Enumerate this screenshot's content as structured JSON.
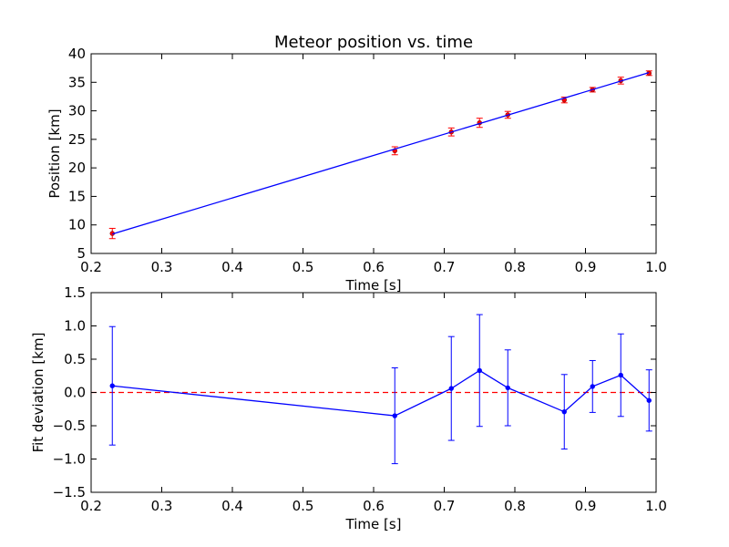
{
  "chart_data": [
    {
      "type": "scatter",
      "title": "Meteor position vs. time",
      "xlabel": "Time [s]",
      "ylabel": "Position [km]",
      "xlim": [
        0.2,
        1.0
      ],
      "ylim": [
        5,
        40
      ],
      "xticks": [
        "0.2",
        "0.3",
        "0.4",
        "0.5",
        "0.6",
        "0.7",
        "0.8",
        "0.9",
        "1.0"
      ],
      "yticks": [
        "5",
        "10",
        "15",
        "20",
        "25",
        "30",
        "35",
        "40"
      ],
      "grid": false,
      "series": [
        {
          "kind": "points-with-errorbars",
          "color": "#ff0000",
          "x": [
            0.23,
            0.63,
            0.71,
            0.75,
            0.79,
            0.87,
            0.91,
            0.95,
            0.99
          ],
          "y": [
            8.5,
            23.0,
            26.3,
            27.9,
            29.3,
            31.9,
            33.7,
            35.3,
            36.6
          ],
          "yerr": [
            0.9,
            0.7,
            0.7,
            0.8,
            0.6,
            0.5,
            0.4,
            0.6,
            0.4
          ]
        },
        {
          "kind": "fit-line",
          "color": "#0000ff",
          "x": [
            0.23,
            0.99
          ],
          "y": [
            8.4,
            36.7
          ]
        }
      ]
    },
    {
      "type": "line",
      "title": "",
      "xlabel": "Time [s]",
      "ylabel": "Fit deviation [km]",
      "xlim": [
        0.2,
        1.0
      ],
      "ylim": [
        -1.5,
        1.5
      ],
      "xticks": [
        "0.2",
        "0.3",
        "0.4",
        "0.5",
        "0.6",
        "0.7",
        "0.8",
        "0.9",
        "1.0"
      ],
      "yticks": [
        "−1.5",
        "−1.0",
        "−0.5",
        "0.0",
        "0.5",
        "1.0",
        "1.5"
      ],
      "grid": false,
      "reference_line": {
        "y": 0.0,
        "color": "#ff0000",
        "style": "dashed"
      },
      "series": [
        {
          "kind": "line-with-errorbars",
          "color": "#0000ff",
          "x": [
            0.23,
            0.63,
            0.71,
            0.75,
            0.79,
            0.87,
            0.91,
            0.95,
            0.99
          ],
          "y": [
            0.1,
            -0.35,
            0.06,
            0.33,
            0.07,
            -0.29,
            0.09,
            0.26,
            -0.12
          ],
          "yerr": [
            0.89,
            0.72,
            0.78,
            0.84,
            0.57,
            0.56,
            0.39,
            0.62,
            0.46
          ]
        }
      ]
    }
  ]
}
